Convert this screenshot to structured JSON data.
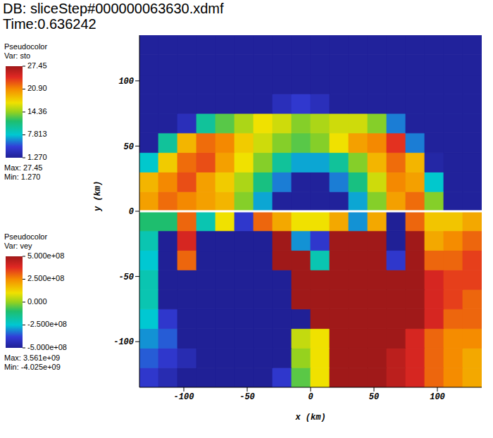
{
  "chart_data": {
    "type": "heatmap",
    "title": "DB: sliceStep#000000063630.xdmf",
    "subtitle": "Time:0.636242",
    "x_label": "x (km)",
    "y_label": "y (km)",
    "xlim": [
      -135,
      135
    ],
    "ylim": [
      -135,
      135
    ],
    "xticks": [
      -100,
      -50,
      0,
      50,
      100
    ],
    "yticks": [
      -100,
      -50,
      0,
      50,
      100
    ],
    "x_edges": [
      -135,
      -120,
      -105,
      -90,
      -75,
      -60,
      -45,
      -30,
      -15,
      0,
      15,
      30,
      45,
      60,
      75,
      90,
      105,
      120,
      135
    ],
    "fields": [
      {
        "legend_title": "Pseudocolor",
        "name": "Var: sto",
        "stats": [
          "Max: 27.45",
          "Min: 1.270"
        ],
        "color_range": [
          1.27,
          27.45
        ],
        "colorbar_ticks": [
          27.45,
          {
            "value": 20.9,
            "label": "20.90"
          },
          14.36,
          7.813,
          {
            "value": 1.27,
            "label": "1.270"
          }
        ],
        "y_edges": [
          0,
          15,
          30,
          45,
          60,
          75,
          90,
          105,
          120,
          135
        ],
        "cells": [
          [
            20,
            22,
            21,
            20,
            19,
            14,
            7,
            1.5,
            1.5,
            1.5,
            1.5,
            7,
            14,
            20,
            22,
            14,
            1.5,
            1.5
          ],
          [
            19,
            21,
            23,
            20,
            18,
            15,
            11,
            6,
            1.5,
            1.5,
            6,
            11,
            16,
            21,
            20,
            8,
            1.5,
            1.5
          ],
          [
            8,
            18,
            22,
            23,
            20,
            17,
            14,
            10,
            7,
            7,
            10,
            14,
            19,
            22,
            19,
            2,
            1.5,
            1.5
          ],
          [
            1.5,
            10,
            19,
            22,
            21,
            18,
            16,
            14,
            13,
            14,
            17,
            20,
            21,
            24,
            6,
            1.5,
            1.5,
            1.5
          ],
          [
            1.5,
            1.5,
            3,
            10,
            13,
            15,
            17,
            16,
            14,
            15,
            16,
            16,
            14,
            6,
            1.5,
            1.5,
            1.5,
            1.5
          ],
          [
            1.5,
            1.5,
            1.5,
            1.5,
            1.5,
            1.5,
            1.5,
            3,
            4,
            3,
            1.5,
            1.5,
            1.5,
            1.5,
            1.5,
            1.5,
            1.5,
            1.5
          ],
          [
            1.5,
            1.5,
            1.5,
            1.5,
            1.5,
            1.5,
            1.5,
            1.5,
            1.5,
            1.5,
            1.5,
            1.5,
            1.5,
            1.5,
            1.5,
            1.5,
            1.5,
            1.5
          ],
          [
            1.5,
            1.5,
            1.5,
            1.5,
            1.5,
            1.5,
            1.5,
            1.5,
            1.5,
            1.5,
            1.5,
            1.5,
            1.5,
            1.5,
            1.5,
            1.5,
            1.5,
            1.5
          ],
          [
            1.5,
            1.5,
            1.5,
            1.5,
            1.5,
            1.5,
            1.5,
            1.5,
            1.5,
            1.5,
            1.5,
            1.5,
            1.5,
            1.5,
            1.5,
            1.5,
            1.5,
            1.5
          ]
        ]
      },
      {
        "legend_title": "Pseudocolor",
        "name": "Var: vey",
        "stats": [
          "Max: 3.561e+09",
          "Min: -4.025e+09"
        ],
        "color_range": [
          -500000000.0,
          500000000.0
        ],
        "colorbar_ticks": [
          {
            "value": 500000000.0,
            "label": "5.000e+08"
          },
          {
            "value": 250000000.0,
            "label": "2.500e+08"
          },
          {
            "value": 0,
            "label": "0.000"
          },
          {
            "value": -250000000.0,
            "label": "-2.500e+08"
          },
          {
            "value": -500000000.0,
            "label": "-5.000e+08"
          }
        ],
        "y_edges": [
          -135,
          -120,
          -105,
          -90,
          -75,
          -60,
          -45,
          -30,
          -15,
          0
        ],
        "cells": [
          [
            -400000000.0,
            -450000000.0,
            -500000000.0,
            -500000000.0,
            -500000000.0,
            -500000000.0,
            -500000000.0,
            -400000000.0,
            -50000000.0,
            100000000.0,
            500000000.0,
            500000000.0,
            500000000.0,
            450000000.0,
            400000000.0,
            300000000.0,
            250000000.0,
            200000000.0
          ],
          [
            -350000000.0,
            -400000000.0,
            -450000000.0,
            -500000000.0,
            -500000000.0,
            -500000000.0,
            -500000000.0,
            -500000000.0,
            0,
            100000000.0,
            500000000.0,
            500000000.0,
            500000000.0,
            450000000.0,
            400000000.0,
            300000000.0,
            250000000.0,
            200000000.0
          ],
          [
            -300000000.0,
            -350000000.0,
            -500000000.0,
            -500000000.0,
            -500000000.0,
            -500000000.0,
            -500000000.0,
            -500000000.0,
            50000000.0,
            100000000.0,
            500000000.0,
            500000000.0,
            500000000.0,
            500000000.0,
            400000000.0,
            300000000.0,
            250000000.0,
            250000000.0
          ],
          [
            -250000000.0,
            -400000000.0,
            -500000000.0,
            -500000000.0,
            -500000000.0,
            -500000000.0,
            -500000000.0,
            -500000000.0,
            -500000000.0,
            500000000.0,
            500000000.0,
            500000000.0,
            500000000.0,
            500000000.0,
            500000000.0,
            400000000.0,
            300000000.0,
            300000000.0
          ],
          [
            -200000000.0,
            -500000000.0,
            -500000000.0,
            -500000000.0,
            -500000000.0,
            -500000000.0,
            -500000000.0,
            -500000000.0,
            500000000.0,
            500000000.0,
            500000000.0,
            500000000.0,
            500000000.0,
            500000000.0,
            500000000.0,
            400000000.0,
            350000000.0,
            300000000.0
          ],
          [
            -200000000.0,
            -500000000.0,
            -500000000.0,
            -500000000.0,
            -500000000.0,
            -500000000.0,
            -500000000.0,
            -500000000.0,
            500000000.0,
            500000000.0,
            500000000.0,
            500000000.0,
            500000000.0,
            500000000.0,
            500000000.0,
            400000000.0,
            350000000.0,
            350000000.0
          ],
          [
            -250000000.0,
            -500000000.0,
            300000000.0,
            -500000000.0,
            -500000000.0,
            -500000000.0,
            -500000000.0,
            500000000.0,
            500000000.0,
            -200000000.0,
            500000000.0,
            500000000.0,
            500000000.0,
            -400000000.0,
            500000000.0,
            300000000.0,
            300000000.0,
            350000000.0
          ],
          [
            -200000000.0,
            -500000000.0,
            400000000.0,
            -500000000.0,
            -500000000.0,
            -500000000.0,
            -500000000.0,
            500000000.0,
            -300000000.0,
            -400000000.0,
            500000000.0,
            500000000.0,
            500000000.0,
            -500000000.0,
            500000000.0,
            200000000.0,
            250000000.0,
            300000000.0
          ],
          [
            -100000000.0,
            -100000000.0,
            300000000.0,
            -200000000.0,
            100000000.0,
            -400000000.0,
            300000000.0,
            200000000.0,
            100000000.0,
            100000000.0,
            200000000.0,
            -300000000.0,
            200000000.0,
            -500000000.0,
            300000000.0,
            150000000.0,
            150000000.0,
            200000000.0
          ]
        ]
      }
    ]
  }
}
